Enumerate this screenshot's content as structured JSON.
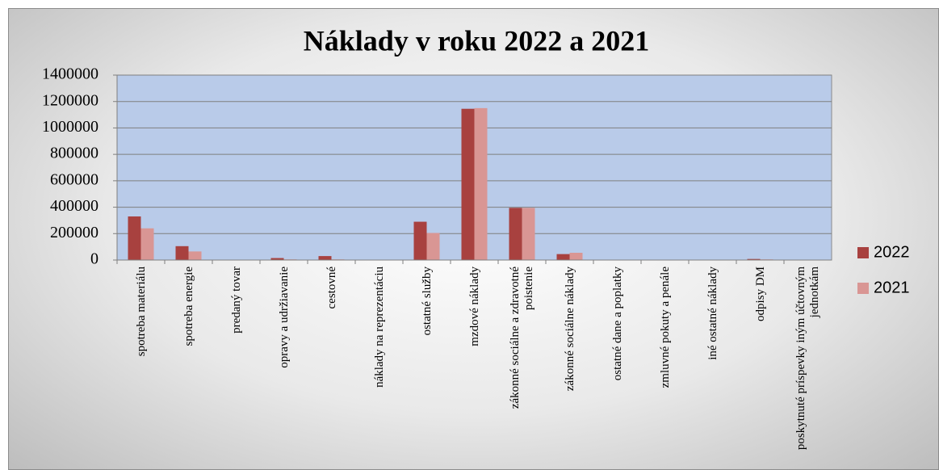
{
  "chart_data": {
    "type": "bar",
    "title": "Náklady v roku 2022 a 2021",
    "categories": [
      "spotreba materiálu",
      "spotreba energie",
      "predaný tovar",
      "opravy a udržiavanie",
      "cestovné",
      "náklady na reprezentáciu",
      "ostatné služby",
      "mzdové náklady",
      "zákonné sociálne a zdravotné poistenie",
      "zákonné sociálne náklady",
      "ostatné dane a poplatky",
      "zmluvné pokuty a penále",
      "iné ostatné náklady",
      "odpisy DM",
      "poskytnuté príspevky iným účtovným jednotkám"
    ],
    "series": [
      {
        "name": "2022",
        "color": "#a8413f",
        "values": [
          330000,
          105000,
          0,
          15000,
          30000,
          0,
          290000,
          1145000,
          395000,
          45000,
          0,
          0,
          2000,
          8000,
          0
        ]
      },
      {
        "name": "2021",
        "color": "#d99694",
        "values": [
          240000,
          65000,
          0,
          5000,
          5000,
          0,
          205000,
          1150000,
          395000,
          55000,
          0,
          0,
          2000,
          5000,
          0
        ]
      }
    ],
    "ylim": [
      0,
      1400000
    ],
    "yticks": [
      0,
      200000,
      400000,
      600000,
      800000,
      1000000,
      1200000,
      1400000
    ],
    "grid": true,
    "legend": "right",
    "plot_background": "#b9cbe9"
  }
}
